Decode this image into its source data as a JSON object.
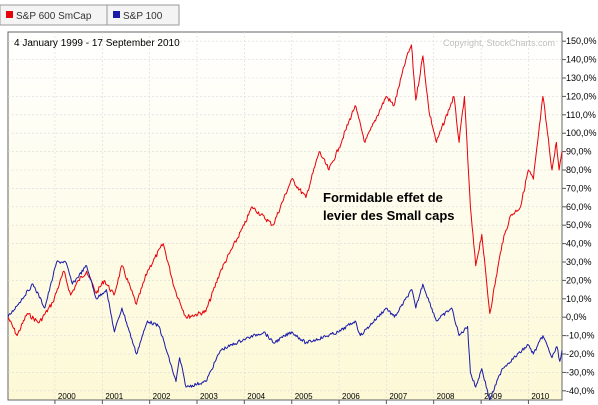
{
  "header": {
    "date_range": "4 January 1999 - 17 September 2010",
    "copyright": "Copyright, StockCharts.com"
  },
  "chart_data": {
    "type": "line",
    "title": "",
    "xlabel": "",
    "ylabel": "",
    "ylim": [
      -45,
      155
    ],
    "x_range": [
      "1999-01-04",
      "2010-09-17"
    ],
    "x_ticks": [
      "2000",
      "2001",
      "2002",
      "2003",
      "2004",
      "2005",
      "2006",
      "2007",
      "2008",
      "2009",
      "2010"
    ],
    "y_ticks": [
      "-40,0%",
      "-30,0%",
      "-20,0%",
      "-10,0%",
      "0,0%",
      "10,0%",
      "20,0%",
      "30,0%",
      "40,0%",
      "50,0%",
      "60,0%",
      "70,0%",
      "80,0%",
      "90,0%",
      "100,0%",
      "110,0%",
      "120,0%",
      "130,0%",
      "140,0%",
      "150,0%"
    ],
    "grid": true,
    "legend_position": "top-left",
    "series": [
      {
        "name": "S&P 600 SmCap",
        "color": "#e8000b",
        "points": [
          [
            "1999-01-04",
            0
          ],
          [
            "1999-03-15",
            -10
          ],
          [
            "1999-06-01",
            2
          ],
          [
            "1999-09-01",
            -3
          ],
          [
            "1999-12-15",
            8
          ],
          [
            "2000-03-10",
            25
          ],
          [
            "2000-05-01",
            12
          ],
          [
            "2000-07-01",
            20
          ],
          [
            "2000-09-01",
            25
          ],
          [
            "2000-11-15",
            13
          ],
          [
            "2001-01-15",
            20
          ],
          [
            "2001-04-01",
            12
          ],
          [
            "2001-06-01",
            28
          ],
          [
            "2001-09-21",
            7
          ],
          [
            "2001-12-15",
            25
          ],
          [
            "2002-04-15",
            40
          ],
          [
            "2002-07-15",
            15
          ],
          [
            "2002-10-09",
            0
          ],
          [
            "2003-03-10",
            3
          ],
          [
            "2003-07-01",
            25
          ],
          [
            "2003-12-31",
            50
          ],
          [
            "2004-03-01",
            60
          ],
          [
            "2004-08-10",
            50
          ],
          [
            "2004-12-31",
            75
          ],
          [
            "2005-04-20",
            65
          ],
          [
            "2005-08-01",
            90
          ],
          [
            "2005-10-15",
            80
          ],
          [
            "2005-12-31",
            92
          ],
          [
            "2006-05-05",
            115
          ],
          [
            "2006-07-20",
            95
          ],
          [
            "2006-12-31",
            120
          ],
          [
            "2007-03-01",
            115
          ],
          [
            "2007-06-01",
            140
          ],
          [
            "2007-07-13",
            148
          ],
          [
            "2007-08-16",
            118
          ],
          [
            "2007-10-10",
            142
          ],
          [
            "2007-11-26",
            112
          ],
          [
            "2008-01-22",
            95
          ],
          [
            "2008-06-05",
            120
          ],
          [
            "2008-07-15",
            95
          ],
          [
            "2008-08-25",
            120
          ],
          [
            "2008-10-10",
            60
          ],
          [
            "2008-11-20",
            28
          ],
          [
            "2009-01-06",
            45
          ],
          [
            "2009-03-09",
            2
          ],
          [
            "2009-06-12",
            40
          ],
          [
            "2009-08-15",
            55
          ],
          [
            "2009-11-01",
            60
          ],
          [
            "2009-12-31",
            80
          ],
          [
            "2010-02-08",
            75
          ],
          [
            "2010-04-23",
            120
          ],
          [
            "2010-07-02",
            80
          ],
          [
            "2010-08-05",
            95
          ],
          [
            "2010-08-26",
            80
          ],
          [
            "2010-09-17",
            90
          ]
        ]
      },
      {
        "name": "S&P 100",
        "color": "#1a1aa8",
        "points": [
          [
            "1999-01-04",
            0
          ],
          [
            "1999-04-01",
            8
          ],
          [
            "1999-07-16",
            18
          ],
          [
            "1999-10-15",
            5
          ],
          [
            "2000-01-14",
            30
          ],
          [
            "2000-03-24",
            30
          ],
          [
            "2000-05-15",
            18
          ],
          [
            "2000-09-01",
            28
          ],
          [
            "2000-11-15",
            10
          ],
          [
            "2001-01-31",
            15
          ],
          [
            "2001-04-04",
            -8
          ],
          [
            "2001-06-01",
            5
          ],
          [
            "2001-09-21",
            -20
          ],
          [
            "2001-12-15",
            -2
          ],
          [
            "2002-03-15",
            -5
          ],
          [
            "2002-07-23",
            -35
          ],
          [
            "2002-08-20",
            -22
          ],
          [
            "2002-10-09",
            -38
          ],
          [
            "2003-03-11",
            -35
          ],
          [
            "2003-07-01",
            -18
          ],
          [
            "2003-12-31",
            -12
          ],
          [
            "2004-06-01",
            -8
          ],
          [
            "2004-08-13",
            -14
          ],
          [
            "2004-12-31",
            -8
          ],
          [
            "2005-04-20",
            -14
          ],
          [
            "2005-12-31",
            -8
          ],
          [
            "2006-05-05",
            -2
          ],
          [
            "2006-06-14",
            -10
          ],
          [
            "2006-12-31",
            5
          ],
          [
            "2007-03-05",
            0
          ],
          [
            "2007-07-16",
            15
          ],
          [
            "2007-08-16",
            5
          ],
          [
            "2007-10-09",
            18
          ],
          [
            "2008-01-22",
            -2
          ],
          [
            "2008-05-19",
            5
          ],
          [
            "2008-07-15",
            -10
          ],
          [
            "2008-09-19",
            -5
          ],
          [
            "2008-10-10",
            -30
          ],
          [
            "2008-11-20",
            -38
          ],
          [
            "2009-01-06",
            -28
          ],
          [
            "2009-03-09",
            -45
          ],
          [
            "2009-06-12",
            -28
          ],
          [
            "2009-12-31",
            -15
          ],
          [
            "2010-02-08",
            -20
          ],
          [
            "2010-04-23",
            -10
          ],
          [
            "2010-07-02",
            -22
          ],
          [
            "2010-08-09",
            -16
          ],
          [
            "2010-08-31",
            -24
          ],
          [
            "2010-09-17",
            -18
          ]
        ]
      }
    ],
    "annotations": [
      "Formidable effet de",
      "levier des Small caps"
    ]
  },
  "colors": {
    "plot_background_top": "#ffffff",
    "plot_background_bottom": "#fdf9d6",
    "grid": "#d9d9d9"
  }
}
